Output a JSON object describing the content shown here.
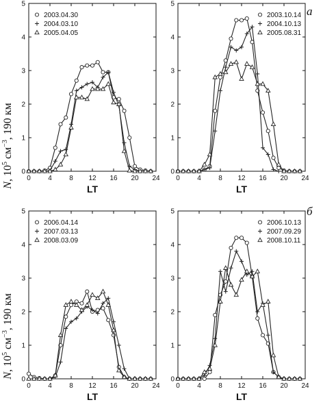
{
  "figure": {
    "ylabel": {
      "n": "N",
      "rest": ", 10",
      "exp": "5",
      "units": " см",
      "units_exp": "−3",
      "tail": ", 190 км"
    },
    "tags": [
      "а",
      "б"
    ]
  },
  "chart_data": [
    {
      "type": "line",
      "xlabel": "LT",
      "xlim": [
        0,
        24
      ],
      "ylim": [
        0,
        5
      ],
      "xticks": [
        "0",
        "4",
        "8",
        "12",
        "16",
        "20",
        "24"
      ],
      "yticks": [
        "0",
        "1",
        "2",
        "3",
        "4",
        "5"
      ],
      "legend_position": "top-left",
      "series": [
        {
          "name": "2003.04.30",
          "marker": "circle",
          "x": [
            0,
            1,
            2,
            3,
            4,
            5,
            6,
            7,
            8,
            9,
            10,
            11,
            12,
            13,
            14,
            15,
            16,
            17,
            18,
            19,
            20,
            21,
            22,
            23
          ],
          "y": [
            0,
            0,
            0,
            0.02,
            0.1,
            0.7,
            1.4,
            1.6,
            2.3,
            2.7,
            3.1,
            3.15,
            3.15,
            3.25,
            2.95,
            2.95,
            2.2,
            2.15,
            1.8,
            1.0,
            0.15,
            0.05,
            0.02,
            0
          ]
        },
        {
          "name": "2004.03.10",
          "marker": "plus",
          "x": [
            0,
            1,
            2,
            3,
            4,
            5,
            6,
            7,
            8,
            9,
            10,
            11,
            12,
            13,
            14,
            15,
            16,
            17,
            18,
            19,
            20,
            21,
            22,
            23
          ],
          "y": [
            0,
            0,
            0,
            0,
            0.02,
            0.3,
            0.6,
            0.65,
            1.4,
            2.4,
            2.5,
            2.6,
            2.65,
            2.5,
            2.8,
            2.95,
            2.35,
            1.95,
            0.85,
            0.15,
            0.05,
            0,
            0,
            0
          ]
        },
        {
          "name": "2005.04.05",
          "marker": "triangle",
          "x": [
            0,
            1,
            2,
            3,
            4,
            5,
            6,
            7,
            8,
            9,
            10,
            11,
            12,
            13,
            14,
            15,
            16,
            17,
            18,
            19,
            20,
            21,
            22,
            23
          ],
          "y": [
            0,
            0,
            0,
            0,
            0,
            0.05,
            0.2,
            0.5,
            1.3,
            2.2,
            2.2,
            2.15,
            2.45,
            2.45,
            2.45,
            2.6,
            2.05,
            2.0,
            0.6,
            0.02,
            0,
            0,
            0,
            0
          ]
        }
      ]
    },
    {
      "type": "line",
      "xlabel": "LT",
      "xlim": [
        0,
        24
      ],
      "ylim": [
        0,
        5
      ],
      "xticks": [
        "0",
        "4",
        "8",
        "12",
        "16",
        "20",
        "24"
      ],
      "yticks": [
        "0",
        "1",
        "2",
        "3",
        "4",
        "5"
      ],
      "legend_position": "top-right",
      "series": [
        {
          "name": "2003.10.14",
          "marker": "circle",
          "x": [
            0,
            1,
            2,
            3,
            4,
            5,
            6,
            7,
            8,
            9,
            10,
            11,
            12,
            13,
            14,
            15,
            16,
            17,
            18,
            19,
            20,
            21,
            22,
            23
          ],
          "y": [
            0,
            0,
            0,
            0,
            0,
            0.05,
            0.15,
            1.8,
            2.8,
            3.3,
            3.95,
            4.5,
            4.5,
            4.55,
            3.85,
            2.4,
            1.75,
            1.2,
            0.4,
            0.1,
            0.02,
            0,
            0,
            0
          ]
        },
        {
          "name": "2004.10.13",
          "marker": "plus",
          "x": [
            0,
            1,
            2,
            3,
            4,
            5,
            6,
            7,
            8,
            9,
            10,
            11,
            12,
            13,
            14,
            15,
            16,
            17,
            18,
            19,
            20,
            21,
            22,
            23
          ],
          "y": [
            0,
            0,
            0,
            0,
            0,
            0.05,
            0.1,
            1.2,
            2.4,
            3.1,
            3.7,
            3.6,
            3.7,
            4.1,
            4.3,
            2.9,
            0.7,
            0.5,
            0.05,
            0,
            0,
            0,
            0,
            0
          ]
        },
        {
          "name": "2005.08.31",
          "marker": "triangle",
          "x": [
            0,
            1,
            2,
            3,
            4,
            5,
            6,
            7,
            8,
            9,
            10,
            11,
            12,
            13,
            14,
            15,
            16,
            17,
            18,
            19,
            20,
            21,
            22,
            23
          ],
          "y": [
            0,
            0,
            0,
            0,
            0,
            0.2,
            0.5,
            2.8,
            2.9,
            2.95,
            3.2,
            3.25,
            2.75,
            3.2,
            3.1,
            2.6,
            2.6,
            2.4,
            1.4,
            0.2,
            0,
            0,
            0,
            0
          ]
        }
      ]
    },
    {
      "type": "line",
      "xlabel": "LT",
      "xlim": [
        0,
        24
      ],
      "ylim": [
        0,
        5
      ],
      "xticks": [
        "0",
        "4",
        "8",
        "12",
        "16",
        "20",
        "24"
      ],
      "yticks": [
        "0",
        "1",
        "2",
        "3",
        "4",
        "5"
      ],
      "legend_position": "top-left",
      "series": [
        {
          "name": "2006.04.14",
          "marker": "circle",
          "x": [
            0,
            1,
            2,
            3,
            4,
            5,
            6,
            7,
            8,
            9,
            10,
            11,
            12,
            13,
            14,
            15,
            16,
            17,
            18,
            19,
            20,
            21,
            22,
            23
          ],
          "y": [
            0.15,
            0.05,
            0.02,
            0,
            0,
            0.1,
            1.0,
            1.85,
            2.2,
            2.3,
            2.25,
            2.6,
            2.0,
            2.05,
            2.1,
            1.75,
            1.3,
            0.35,
            0.05,
            0,
            0,
            0,
            0,
            0
          ]
        },
        {
          "name": "2007.03.13",
          "marker": "plus",
          "x": [
            0,
            1,
            2,
            3,
            4,
            5,
            6,
            7,
            8,
            9,
            10,
            11,
            12,
            13,
            14,
            15,
            16,
            17,
            18,
            19,
            20,
            21,
            22,
            23
          ],
          "y": [
            0,
            0,
            0,
            0,
            0,
            0.05,
            0.5,
            1.5,
            1.7,
            1.8,
            2.0,
            2.15,
            2.05,
            1.95,
            2.25,
            2.4,
            1.7,
            1.0,
            0.3,
            0,
            0,
            0,
            0,
            0
          ]
        },
        {
          "name": "2008.03.09",
          "marker": "triangle",
          "x": [
            0,
            1,
            2,
            3,
            4,
            5,
            6,
            7,
            8,
            9,
            10,
            11,
            12,
            13,
            14,
            15,
            16,
            17,
            18,
            19,
            20,
            21,
            22,
            23
          ],
          "y": [
            0,
            0,
            0,
            0,
            0,
            0.1,
            1.3,
            2.2,
            2.3,
            2.2,
            2.05,
            2.2,
            2.5,
            2.4,
            2.6,
            2.2,
            1.45,
            0.25,
            0.05,
            0,
            0,
            0,
            0,
            0
          ]
        }
      ]
    },
    {
      "type": "line",
      "xlabel": "LT",
      "xlim": [
        0,
        24
      ],
      "ylim": [
        0,
        5
      ],
      "xticks": [
        "0",
        "4",
        "8",
        "12",
        "16",
        "20",
        "24"
      ],
      "yticks": [
        "0",
        "1",
        "2",
        "3",
        "4",
        "5"
      ],
      "legend_position": "top-right",
      "series": [
        {
          "name": "2006.10.13",
          "marker": "circle",
          "x": [
            0,
            1,
            2,
            3,
            4,
            5,
            6,
            7,
            8,
            9,
            10,
            11,
            12,
            13,
            14,
            15,
            16,
            17,
            18,
            19,
            20,
            21,
            22,
            23
          ],
          "y": [
            0,
            0,
            0,
            0,
            0,
            0,
            0.2,
            1.9,
            2.5,
            2.9,
            3.9,
            4.2,
            4.2,
            4.05,
            3.05,
            1.8,
            1.3,
            1.05,
            0.2,
            0.05,
            0,
            0,
            0,
            0
          ]
        },
        {
          "name": "2007.09.29",
          "marker": "plus",
          "x": [
            0,
            1,
            2,
            3,
            4,
            5,
            6,
            7,
            8,
            9,
            10,
            11,
            12,
            13,
            14,
            15,
            16,
            17,
            18,
            19,
            20,
            21,
            22,
            23
          ],
          "y": [
            0,
            0,
            0,
            0,
            0,
            0.1,
            0.4,
            1.2,
            3.2,
            2.6,
            3.3,
            3.8,
            3.5,
            3.1,
            3.2,
            2.0,
            2.25,
            1.3,
            0.2,
            0.05,
            0,
            0,
            0,
            0
          ]
        },
        {
          "name": "2008.10.11",
          "marker": "triangle",
          "x": [
            0,
            1,
            2,
            3,
            4,
            5,
            6,
            7,
            8,
            9,
            10,
            11,
            12,
            13,
            14,
            15,
            16,
            17,
            18,
            19,
            20,
            21,
            22,
            23
          ],
          "y": [
            0,
            0,
            0,
            0,
            0,
            0.2,
            0.3,
            1.0,
            2.3,
            3.3,
            2.8,
            2.5,
            2.95,
            3.2,
            3.05,
            3.2,
            2.2,
            2.3,
            0.7,
            0.05,
            0,
            0,
            0,
            0
          ]
        }
      ]
    }
  ]
}
